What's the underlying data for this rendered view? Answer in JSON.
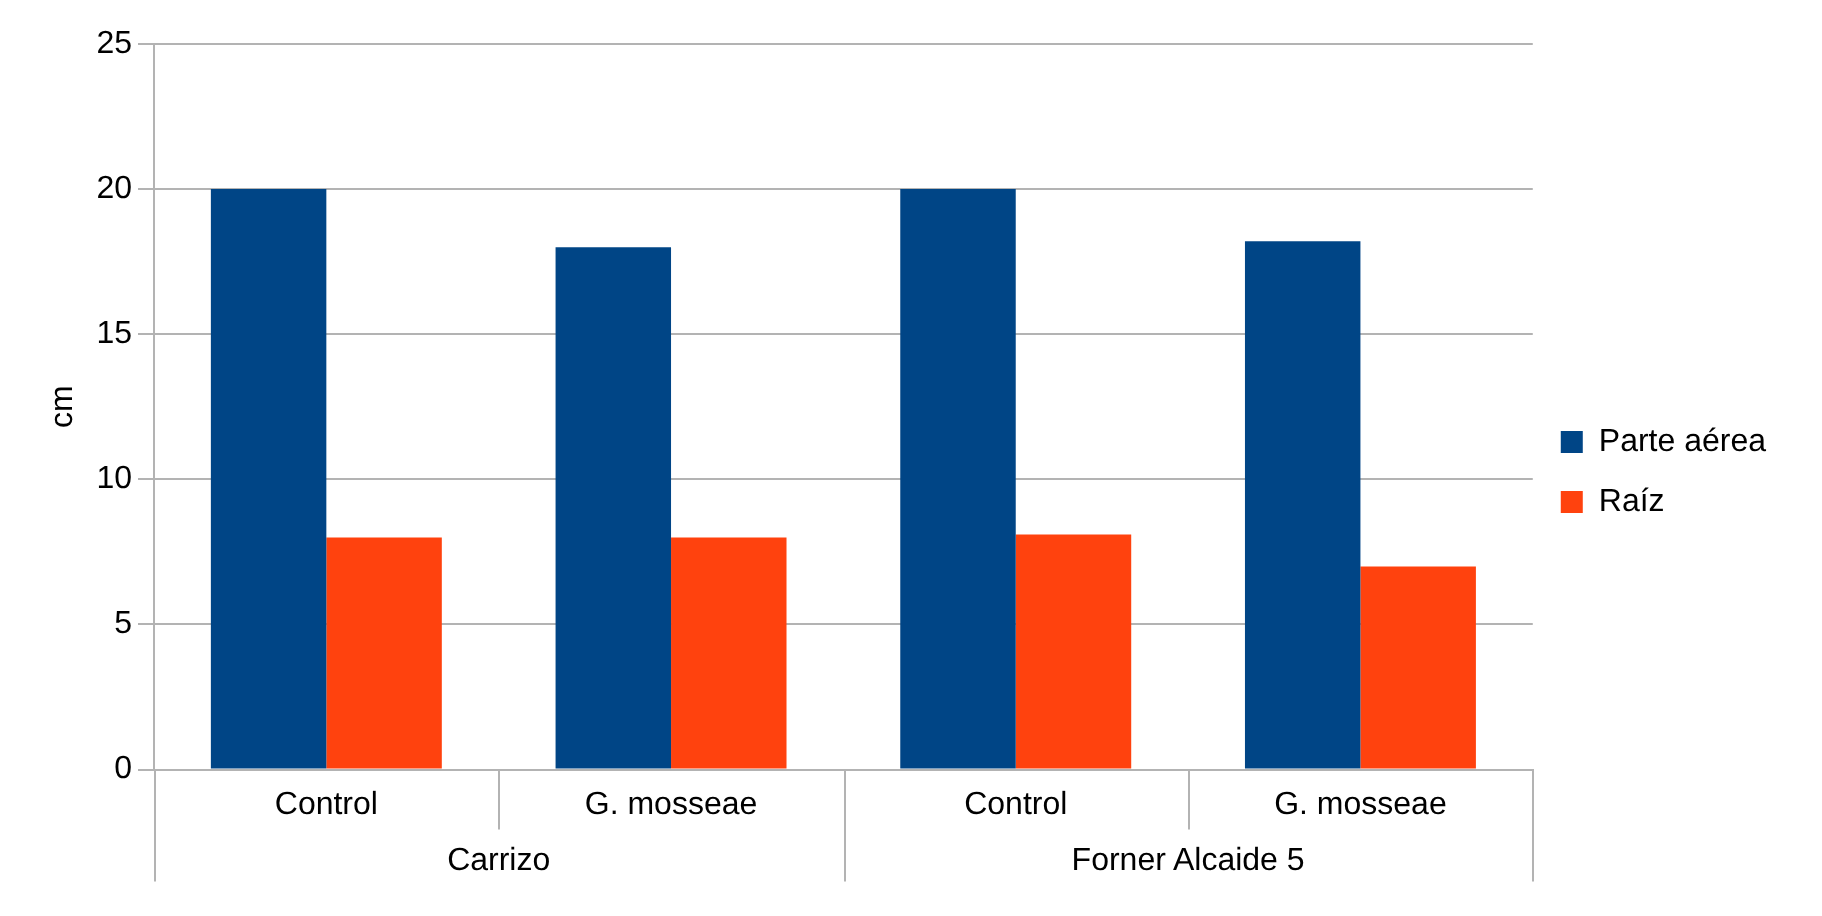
{
  "chart_data": {
    "type": "bar",
    "ylabel": "cm",
    "categories": [
      "Control",
      "G. mosseae",
      "Control",
      "G. mosseae"
    ],
    "series": [
      {
        "name": "Parte aérea",
        "color": "#004586",
        "values": [
          20,
          18,
          20,
          18.2
        ]
      },
      {
        "name": "Raíz",
        "color": "#ff420e",
        "values": [
          8,
          8,
          8.1,
          7
        ]
      }
    ],
    "ylim": [
      0,
      25
    ],
    "yticks": [
      0,
      5,
      10,
      15,
      20,
      25
    ],
    "grid": "y",
    "legend": "right",
    "annotations": [
      "Carrizo",
      "Forner Alcaide 5"
    ]
  }
}
